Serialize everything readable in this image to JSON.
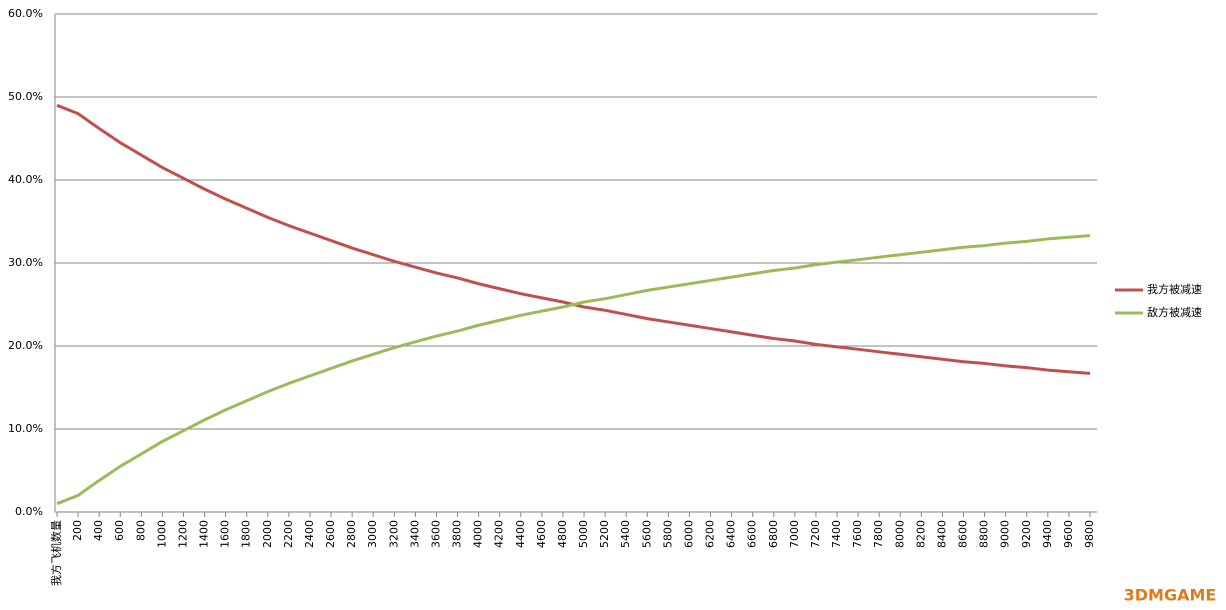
{
  "chart_data": {
    "type": "line",
    "categories": [
      "我方飞机数量",
      "200",
      "400",
      "600",
      "800",
      "1000",
      "1200",
      "1400",
      "1600",
      "1800",
      "2000",
      "2200",
      "2400",
      "2600",
      "2800",
      "3000",
      "3200",
      "3400",
      "3600",
      "3800",
      "4000",
      "4200",
      "4400",
      "4600",
      "4800",
      "5000",
      "5200",
      "5400",
      "5600",
      "5800",
      "6000",
      "6200",
      "6400",
      "6600",
      "6800",
      "7000",
      "7200",
      "7400",
      "7600",
      "7800",
      "8000",
      "8200",
      "8400",
      "8600",
      "8800",
      "9000",
      "9200",
      "9400",
      "9600",
      "9800"
    ],
    "series": [
      {
        "name": "我方被减速",
        "color": "#c0504d",
        "values": [
          49.0,
          48.0,
          46.2,
          44.5,
          43.0,
          41.5,
          40.2,
          38.9,
          37.7,
          36.6,
          35.5,
          34.5,
          33.6,
          32.7,
          31.8,
          31.0,
          30.2,
          29.5,
          28.8,
          28.2,
          27.5,
          26.9,
          26.3,
          25.8,
          25.3,
          24.7,
          24.3,
          23.8,
          23.3,
          22.9,
          22.5,
          22.1,
          21.7,
          21.3,
          20.9,
          20.6,
          20.2,
          19.9,
          19.6,
          19.3,
          19.0,
          18.7,
          18.4,
          18.1,
          17.9,
          17.6,
          17.4,
          17.1,
          16.9,
          16.7
        ]
      },
      {
        "name": "敌方被减速",
        "color": "#9bbb59",
        "values": [
          1.0,
          2.0,
          3.8,
          5.5,
          7.0,
          8.5,
          9.8,
          11.1,
          12.3,
          13.4,
          14.5,
          15.5,
          16.4,
          17.3,
          18.2,
          19.0,
          19.8,
          20.5,
          21.2,
          21.8,
          22.5,
          23.1,
          23.7,
          24.2,
          24.7,
          25.3,
          25.7,
          26.2,
          26.7,
          27.1,
          27.5,
          27.9,
          28.3,
          28.7,
          29.1,
          29.4,
          29.8,
          30.1,
          30.4,
          30.7,
          31.0,
          31.3,
          31.6,
          31.9,
          32.1,
          32.4,
          32.6,
          32.9,
          33.1,
          33.3
        ]
      }
    ],
    "ylim": [
      0,
      60
    ],
    "yticks": [
      {
        "value": 0,
        "label": "0.0%"
      },
      {
        "value": 10,
        "label": "10.0%"
      },
      {
        "value": 20,
        "label": "20.0%"
      },
      {
        "value": 30,
        "label": "30.0%"
      },
      {
        "value": 40,
        "label": "40.0%"
      },
      {
        "value": 50,
        "label": "50.0%"
      },
      {
        "value": 60,
        "label": "60.0%"
      }
    ],
    "grid": true,
    "legend": "right"
  },
  "watermark": "3DMGAME"
}
